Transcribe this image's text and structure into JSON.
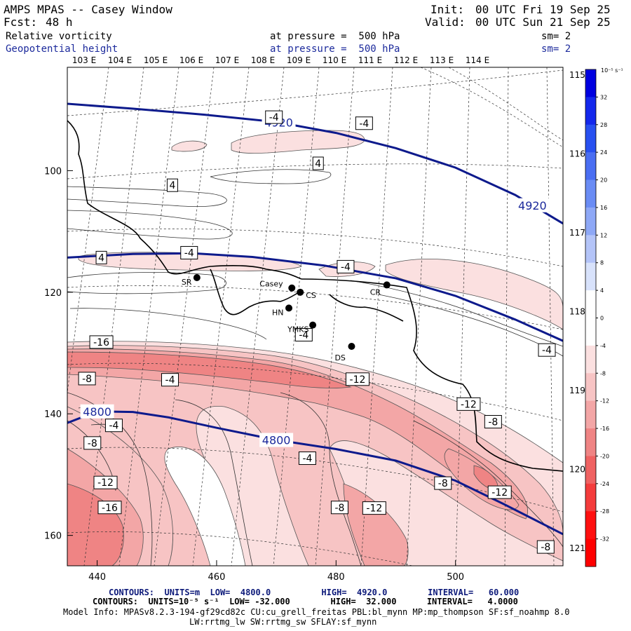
{
  "header": {
    "model_title": "AMPS MPAS -- Casey Window",
    "init_label": "Init:",
    "init_value": "00 UTC Fri 19 Sep 25",
    "fcst_label": "Fcst:",
    "fcst_value": "48 h",
    "valid_label": "Valid:",
    "valid_value": "00 UTC Sun 21 Sep 25",
    "field1_name": "Relative vorticity",
    "field1_level": "at pressure =  500 hPa",
    "field1_sm": "sm= 2",
    "field2_name": "Geopotential height",
    "field2_level": "at pressure =  500 hPa",
    "field2_sm": "sm= 2"
  },
  "chart_data": {
    "type": "heatmap",
    "title": "Relative vorticity and Geopotential height at 500 hPa",
    "x_ticks": [
      440,
      460,
      480,
      500
    ],
    "y_ticks": [
      100,
      120,
      140,
      160
    ],
    "xlim": [
      435,
      518
    ],
    "ylim": [
      83,
      165
    ],
    "lon_labels_top": [
      "103 E",
      "104 E",
      "105 E",
      "106 E",
      "107 E",
      "108 E",
      "109 E",
      "110 E",
      "111 E",
      "112 E",
      "113 E",
      "114 E"
    ],
    "lon_labels_right": [
      "115 E",
      "116 E",
      "117 E",
      "118 E",
      "119 E",
      "120 E",
      "121 E"
    ],
    "colorbar": {
      "unit_label": "10⁻⁵ s⁻¹",
      "levels": [
        32,
        28,
        24,
        20,
        16,
        12,
        8,
        4,
        0,
        -4,
        -8,
        -12,
        -16,
        -20,
        -24,
        -28,
        -32
      ],
      "colors": [
        "#0000e0",
        "#1428ec",
        "#2850f0",
        "#4a6ef2",
        "#6a8cf4",
        "#8ea8f6",
        "#b4c4f8",
        "#d8e2fb",
        "#ffffff",
        "#ffffff",
        "#fbe0e0",
        "#f7c4c4",
        "#f3a6a6",
        "#ef8484",
        "#ef6262",
        "#f43c3c",
        "#ff1010",
        "#ff0000"
      ]
    },
    "height_contours": [
      {
        "value": 4920,
        "label": "4920",
        "points": [
          [
            435,
            89
          ],
          [
            446,
            89.8
          ],
          [
            458,
            90.8
          ],
          [
            470,
            92
          ],
          [
            480,
            93.8
          ],
          [
            490,
            96.3
          ],
          [
            500,
            99.5
          ],
          [
            510,
            104
          ],
          [
            518,
            108.7
          ]
        ]
      },
      {
        "value": 4800,
        "label": "4800",
        "points": [
          [
            435,
            141.5
          ],
          [
            440,
            139.6
          ],
          [
            446,
            139.7
          ],
          [
            452,
            140.6
          ],
          [
            460,
            142.3
          ],
          [
            470,
            144.3
          ],
          [
            480,
            145.8
          ],
          [
            490,
            147.7
          ],
          [
            500,
            151
          ],
          [
            508,
            154.8
          ],
          [
            518,
            159.8
          ]
        ]
      },
      {
        "value": 4860,
        "label": "",
        "points": [
          [
            435,
            114.3
          ],
          [
            446,
            113.7
          ],
          [
            456,
            113.6
          ],
          [
            466,
            114.2
          ],
          [
            478,
            115.6
          ],
          [
            490,
            117.7
          ],
          [
            500,
            120.6
          ],
          [
            510,
            124.5
          ],
          [
            518,
            128
          ]
        ]
      }
    ],
    "vorticity_labels": [
      {
        "text": "-4",
        "x": 469.6,
        "y": 91.2
      },
      {
        "text": "-4",
        "x": 484.7,
        "y": 92.2
      },
      {
        "text": "4",
        "x": 477,
        "y": 98.8
      },
      {
        "text": "4",
        "x": 452.6,
        "y": 102.4
      },
      {
        "text": "4",
        "x": 440.7,
        "y": 114.3
      },
      {
        "text": "-4",
        "x": 455.4,
        "y": 113.5
      },
      {
        "text": "-4",
        "x": 481.6,
        "y": 115.8
      },
      {
        "text": "-4",
        "x": 474.6,
        "y": 127
      },
      {
        "text": "-16",
        "x": 440.7,
        "y": 128.2
      },
      {
        "text": "-12",
        "x": 483.6,
        "y": 134.3
      },
      {
        "text": "-8",
        "x": 438.3,
        "y": 134.2
      },
      {
        "text": "-4",
        "x": 452.2,
        "y": 134.4
      },
      {
        "text": "-12",
        "x": 502.2,
        "y": 138.4
      },
      {
        "text": "-8",
        "x": 506.3,
        "y": 141.3
      },
      {
        "text": "-4",
        "x": 442.8,
        "y": 141.9
      },
      {
        "text": "-8",
        "x": 439.2,
        "y": 144.8
      },
      {
        "text": "-4",
        "x": 475.2,
        "y": 147.3
      },
      {
        "text": "-12",
        "x": 441.4,
        "y": 151.3
      },
      {
        "text": "-8",
        "x": 497.9,
        "y": 151.4
      },
      {
        "text": "-12",
        "x": 507.4,
        "y": 152.9
      },
      {
        "text": "-16",
        "x": 442.1,
        "y": 155.4
      },
      {
        "text": "-8",
        "x": 480.6,
        "y": 155.4
      },
      {
        "text": "-12",
        "x": 486.4,
        "y": 155.5
      },
      {
        "text": "-4",
        "x": 515.3,
        "y": 129.5
      },
      {
        "text": "-8",
        "x": 515.1,
        "y": 161.9
      }
    ],
    "stations": [
      {
        "name": "SR",
        "x": 456.7,
        "y": 117.6
      },
      {
        "name": "Casey",
        "x": 472.6,
        "y": 119.3
      },
      {
        "name": "CS",
        "x": 474,
        "y": 120
      },
      {
        "name": "CR",
        "x": 488.5,
        "y": 118.8
      },
      {
        "name": "HN",
        "x": 472.1,
        "y": 122.6
      },
      {
        "name": "YMKS",
        "x": 476.1,
        "y": 125.4
      },
      {
        "name": "DS",
        "x": 482.6,
        "y": 128.9
      }
    ]
  },
  "footer": {
    "contours_height": "CONTOURS:  UNITS=m  LOW=  4800.0          HIGH=  4920.0        INTERVAL=   60.000",
    "contours_vort": "CONTOURS:  UNITS=10⁻⁵ s⁻¹  LOW= -32.000        HIGH=  32.000      INTERVAL=   4.0000",
    "model_info_1": "Model Info: MPASv8.2.3-194-gf29cd82c CU:cu_grell_freitas PBL:bl_mynn MP:mp_thompson SF:sf_noahmp 8.0",
    "model_info_2": "LW:rrtmg_lw SW:rrtmg_sw SFLAY:sf_mynn"
  }
}
